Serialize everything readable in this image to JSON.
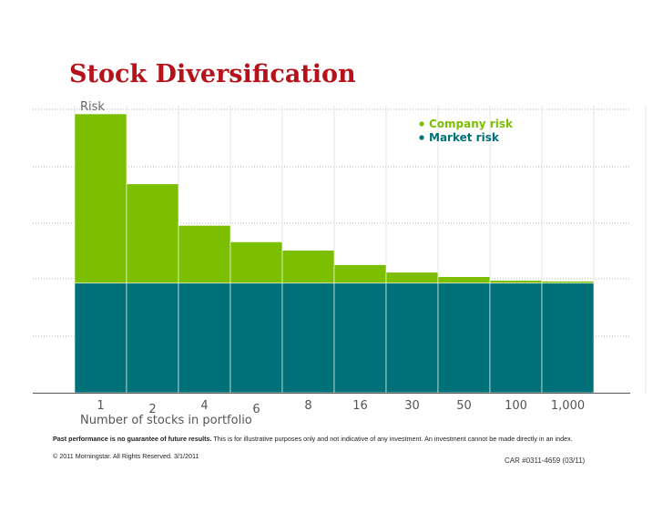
{
  "title": "Stock Diversification",
  "colors": {
    "company": "#7bbf00",
    "market": "#007178",
    "title": "#b5121b"
  },
  "chart_data": {
    "type": "bar",
    "stacked": true,
    "ylabel": "Risk",
    "xlabel": "Number of stocks in portfolio",
    "categories": [
      "1",
      "2",
      "4",
      "6",
      "8",
      "16",
      "30",
      "50",
      "100",
      "1,000"
    ],
    "ylim": [
      0,
      100
    ],
    "series": [
      {
        "name": "Market risk",
        "values": [
          39.3,
          39.3,
          39.3,
          39.3,
          39.3,
          39.3,
          39.3,
          39.3,
          39.3,
          39.3
        ]
      },
      {
        "name": "Company risk",
        "values": [
          60.7,
          35.6,
          20.7,
          14.8,
          11.8,
          6.6,
          3.9,
          2.3,
          1.0,
          0.7
        ]
      }
    ],
    "legend": "top-right",
    "grid": true
  },
  "footer": {
    "disclaimer_bold": "Past performance is no guarantee of future results.",
    "disclaimer_rest": " This is for illustrative purposes only and not indicative of any investment. An investment cannot be made directly in an index.",
    "copyright": "© 2011 Morningstar. All Rights Reserved. 3/1/2011",
    "code": "CAR #0311-4659 (03/11)"
  }
}
